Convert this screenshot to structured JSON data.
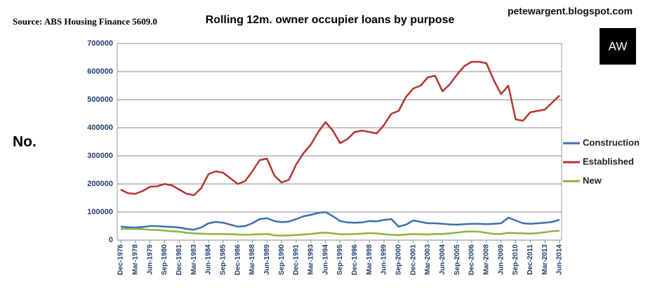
{
  "chart_data": {
    "type": "line",
    "title": "Rolling 12m. owner occupier loans by purpose",
    "source": "Source: ABS Housing Finance 5609.0",
    "watermark": "petewargent.blogspot.com",
    "logo": "AW",
    "y_label": "No.",
    "categories": [
      "Dec-1976",
      null,
      "Mar-1978",
      null,
      "Jun-1979",
      null,
      "Sep-1980",
      null,
      "Dec-1981",
      null,
      "Mar-1983",
      null,
      "Jun-1984",
      null,
      "Sep-1985",
      null,
      "Dec-1986",
      null,
      "Mar-1988",
      null,
      "Jun-1989",
      null,
      "Sep-1990",
      null,
      "Dec-1991",
      null,
      "Mar-1993",
      null,
      "Jun-1994",
      null,
      "Sep-1995",
      null,
      "Dec-1996",
      null,
      "Mar-1998",
      null,
      "Jun-1999",
      null,
      "Sep-2000",
      null,
      "Dec-2001",
      null,
      "Mar-2003",
      null,
      "Jun-2004",
      null,
      "Sep-2005",
      null,
      "Dec-2006",
      null,
      "Mar-2008",
      null,
      "Jun-2009",
      null,
      "Sep-2010",
      null,
      "Dec-2011",
      null,
      "Mar-2013",
      null,
      "Jun-2014"
    ],
    "series": [
      {
        "name": "Construction",
        "color": "#3d6fb0",
        "values": [
          48000,
          46000,
          45000,
          47000,
          50000,
          50000,
          48000,
          47000,
          45000,
          40000,
          37000,
          45000,
          60000,
          65000,
          62000,
          55000,
          48000,
          50000,
          60000,
          75000,
          78000,
          68000,
          64000,
          66000,
          75000,
          85000,
          90000,
          97000,
          100000,
          85000,
          68000,
          63000,
          62000,
          63000,
          68000,
          67000,
          72000,
          75000,
          48000,
          55000,
          70000,
          65000,
          60000,
          60000,
          58000,
          56000,
          55000,
          57000,
          58000,
          58000,
          57000,
          58000,
          60000,
          80000,
          70000,
          60000,
          58000,
          60000,
          62000,
          65000,
          72000
        ]
      },
      {
        "name": "Established",
        "color": "#b3362e",
        "values": [
          180000,
          167000,
          165000,
          175000,
          190000,
          192000,
          200000,
          195000,
          180000,
          165000,
          160000,
          185000,
          235000,
          245000,
          240000,
          220000,
          200000,
          210000,
          245000,
          285000,
          290000,
          230000,
          205000,
          215000,
          270000,
          310000,
          340000,
          385000,
          420000,
          390000,
          345000,
          360000,
          385000,
          390000,
          385000,
          380000,
          410000,
          450000,
          460000,
          510000,
          540000,
          550000,
          580000,
          585000,
          530000,
          555000,
          590000,
          620000,
          635000,
          635000,
          630000,
          570000,
          520000,
          550000,
          430000,
          425000,
          455000,
          460000,
          465000,
          490000,
          515000
        ]
      },
      {
        "name": "New",
        "color": "#8db340",
        "values": [
          40000,
          40000,
          40000,
          39000,
          37000,
          36000,
          34000,
          32000,
          30000,
          26000,
          24000,
          23000,
          22000,
          22000,
          22000,
          21000,
          20000,
          19000,
          20000,
          21000,
          22000,
          17000,
          16000,
          17000,
          18000,
          20000,
          22000,
          25000,
          27000,
          24000,
          21000,
          21000,
          22000,
          23000,
          25000,
          24000,
          21000,
          19000,
          18000,
          20000,
          22000,
          21000,
          20000,
          22000,
          22000,
          24000,
          27000,
          30000,
          31000,
          30000,
          26000,
          22000,
          22000,
          26000,
          25000,
          24000,
          23000,
          25000,
          28000,
          32000,
          33000
        ]
      }
    ],
    "ylim": [
      0,
      700000
    ],
    "yticks": [
      0,
      100000,
      200000,
      300000,
      400000,
      500000,
      600000,
      700000
    ],
    "grid": true
  }
}
